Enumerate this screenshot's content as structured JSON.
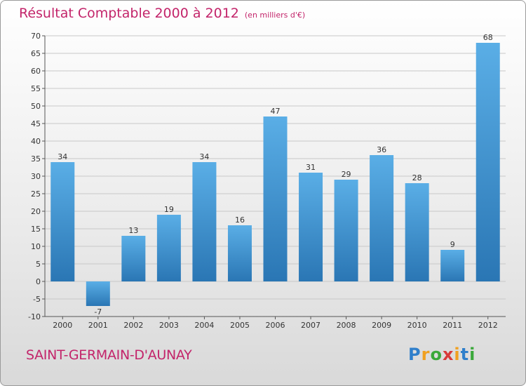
{
  "chart_data": {
    "type": "bar",
    "title": "Résultat Comptable 2000 à 2012",
    "subtitle": "(en milliers d'€)",
    "categories": [
      "2000",
      "2001",
      "2002",
      "2003",
      "2004",
      "2005",
      "2006",
      "2007",
      "2008",
      "2009",
      "2010",
      "2011",
      "2012"
    ],
    "values": [
      34,
      -7,
      13,
      19,
      34,
      16,
      47,
      31,
      29,
      36,
      28,
      9,
      68
    ],
    "data_labels": [
      "34",
      "-7",
      "13",
      "19",
      "34",
      "16",
      "47",
      "31",
      "29",
      "36",
      "28",
      "9",
      "68"
    ],
    "ylim": [
      -10,
      70
    ],
    "yticks": [
      -10,
      -5,
      0,
      5,
      10,
      15,
      20,
      25,
      30,
      35,
      40,
      45,
      50,
      55,
      60,
      65,
      70
    ],
    "xlabel": "",
    "ylabel": "",
    "grid": true,
    "colors": {
      "bar_light": "#5aaee6",
      "bar_dark": "#2a76b4",
      "grid": "#c8c8c8",
      "title": "#c3246a"
    }
  },
  "footer": {
    "commune": "SAINT-GERMAIN-D'AUNAY",
    "logo_letters": [
      "P",
      "r",
      "o",
      "x",
      "i",
      "t",
      "i"
    ]
  }
}
